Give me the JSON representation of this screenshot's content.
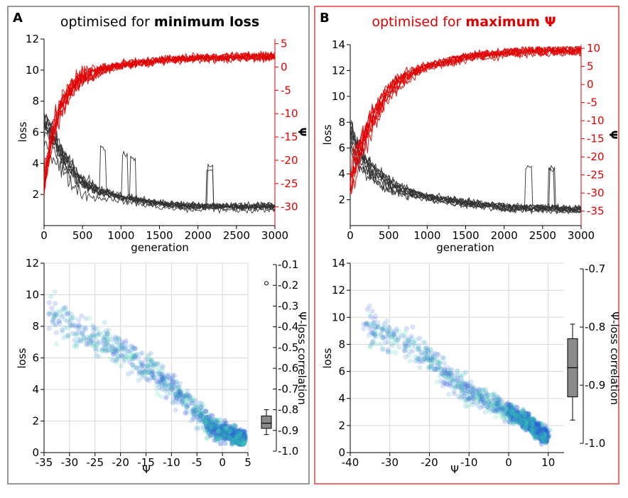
{
  "colors": {
    "panel_a_border": "#7f7f7f",
    "panel_b_border": "#e64b4b",
    "loss_lines": "#303030",
    "psi_lines": "#e00000",
    "scatter_blue": "#2a3ee6",
    "scatter_green": "#36e3a5",
    "grid": "#d8d8d8",
    "box_fill": "#8a8a8a"
  },
  "panels": [
    {
      "letter": "A",
      "title_prefix": "optimised for ",
      "title_bold": "minimum loss",
      "title_color": "#000000",
      "line_xlabel": "generation",
      "line_ylabel": "loss",
      "line_y2label": "Ψ",
      "scatter_xlabel": "Ψ",
      "scatter_ylabel": "loss",
      "corr_label": "Ψ-loss correlation"
    },
    {
      "letter": "B",
      "title_prefix": "optimised for ",
      "title_bold": "maximum Ψ",
      "title_color": "#e00000",
      "line_xlabel": "generation",
      "line_ylabel": "loss",
      "line_y2label": "Ψ",
      "scatter_xlabel": "Ψ",
      "scatter_ylabel": "loss",
      "corr_label": "Ψ-loss correlation"
    }
  ],
  "chart_data": [
    {
      "panel": "A",
      "type": "line",
      "xlabel": "generation",
      "xlim": [
        0,
        3000
      ],
      "xticks": [
        0,
        500,
        1000,
        1500,
        2000,
        2500,
        3000
      ],
      "y_left": {
        "label": "loss",
        "lim": [
          0,
          12
        ],
        "ticks": [
          2,
          4,
          6,
          8,
          10,
          12
        ]
      },
      "y_right": {
        "label": "Ψ",
        "lim": [
          -34,
          6
        ],
        "ticks": [
          5,
          0,
          -5,
          -10,
          -15,
          -20,
          -25,
          -30
        ]
      },
      "series": [
        {
          "axis": "left",
          "color": "#303030",
          "count": 10,
          "x": [
            0,
            100,
            200,
            300,
            400,
            500,
            700,
            1000,
            1500,
            2000,
            2500,
            3000
          ],
          "values": [
            7.2,
            6.1,
            5.2,
            4.3,
            3.6,
            3.0,
            2.4,
            1.9,
            1.5,
            1.3,
            1.3,
            1.3
          ]
        },
        {
          "axis": "right",
          "color": "#e00000",
          "count": 10,
          "x": [
            0,
            100,
            200,
            300,
            400,
            500,
            700,
            1000,
            1500,
            2000,
            2500,
            3000
          ],
          "values": [
            -25,
            -15,
            -9,
            -5.5,
            -3.5,
            -2,
            -0.8,
            0.5,
            1.5,
            2,
            2.2,
            2.3
          ]
        }
      ]
    },
    {
      "panel": "A",
      "type": "scatter",
      "xlabel": "Ψ",
      "ylabel": "loss",
      "xlim": [
        -35,
        5
      ],
      "ylim": [
        0,
        12
      ],
      "xticks": [
        -35,
        -30,
        -25,
        -20,
        -15,
        -10,
        -5,
        0,
        5
      ],
      "yticks": [
        0,
        2,
        4,
        6,
        8,
        10,
        12
      ],
      "trend": {
        "x": [
          -34,
          -30,
          -25,
          -20,
          -15,
          -10,
          -5,
          -2,
          0,
          3,
          4
        ],
        "y": [
          8.8,
          8.0,
          7.2,
          6.5,
          5.4,
          4.2,
          2.6,
          1.6,
          1.3,
          1.0,
          0.9
        ]
      },
      "colors_from": "blue (early generations) to green (late generations)"
    },
    {
      "panel": "A",
      "type": "box",
      "ylabel": "Ψ-loss correlation",
      "ylim": [
        -1.0,
        -0.1
      ],
      "yticks": [
        -0.1,
        -0.2,
        -0.3,
        -0.4,
        -0.5,
        -0.6,
        -0.7,
        -0.8,
        -0.9,
        -1.0
      ],
      "min": -0.92,
      "q1": -0.89,
      "median": -0.865,
      "q3": -0.83,
      "max": -0.8,
      "outliers": [
        -0.19
      ]
    },
    {
      "panel": "B",
      "type": "line",
      "xlabel": "generation",
      "xlim": [
        0,
        3000
      ],
      "xticks": [
        0,
        500,
        1000,
        1500,
        2000,
        2500,
        3000
      ],
      "y_left": {
        "label": "loss",
        "lim": [
          0,
          14
        ],
        "ticks": [
          2,
          4,
          6,
          8,
          10,
          12,
          14
        ]
      },
      "y_right": {
        "label": "Ψ",
        "lim": [
          -39,
          11
        ],
        "ticks": [
          10,
          5,
          0,
          -5,
          -10,
          -15,
          -20,
          -25,
          -30,
          -35
        ]
      },
      "series": [
        {
          "axis": "left",
          "color": "#303030",
          "count": 10,
          "x": [
            0,
            100,
            200,
            300,
            400,
            500,
            700,
            1000,
            1500,
            2000,
            2500,
            3000
          ],
          "values": [
            7.5,
            6.0,
            5.0,
            4.4,
            3.9,
            3.4,
            2.8,
            2.3,
            1.8,
            1.5,
            1.4,
            1.3
          ]
        },
        {
          "axis": "right",
          "color": "#e00000",
          "count": 10,
          "x": [
            0,
            100,
            200,
            300,
            400,
            500,
            700,
            1000,
            1500,
            2000,
            2500,
            3000
          ],
          "values": [
            -27,
            -20,
            -14,
            -9,
            -5,
            -2,
            2,
            5,
            7.5,
            8.8,
            9.2,
            9.5
          ]
        }
      ]
    },
    {
      "panel": "B",
      "type": "scatter",
      "xlabel": "Ψ",
      "ylabel": "loss",
      "xlim": [
        -40,
        14
      ],
      "ylim": [
        0,
        14
      ],
      "xticks": [
        -40,
        -30,
        -20,
        -10,
        0,
        10
      ],
      "yticks": [
        0,
        2,
        4,
        6,
        8,
        10,
        12,
        14
      ],
      "trend": {
        "x": [
          -36,
          -30,
          -25,
          -20,
          -15,
          -10,
          -5,
          0,
          5,
          8,
          9
        ],
        "y": [
          9.5,
          8.5,
          8.0,
          7.0,
          5.5,
          4.5,
          3.8,
          3.0,
          2.2,
          1.5,
          1.2
        ]
      },
      "colors_from": "blue (early generations) to green (late generations)"
    },
    {
      "panel": "B",
      "type": "box",
      "ylabel": "Ψ-loss correlation",
      "ylim": [
        -1.0,
        -0.7
      ],
      "yticks": [
        -0.7,
        -0.8,
        -0.9,
        -1.0
      ],
      "min": -0.96,
      "q1": -0.92,
      "median": -0.87,
      "q3": -0.82,
      "max": -0.795,
      "outliers": []
    }
  ]
}
